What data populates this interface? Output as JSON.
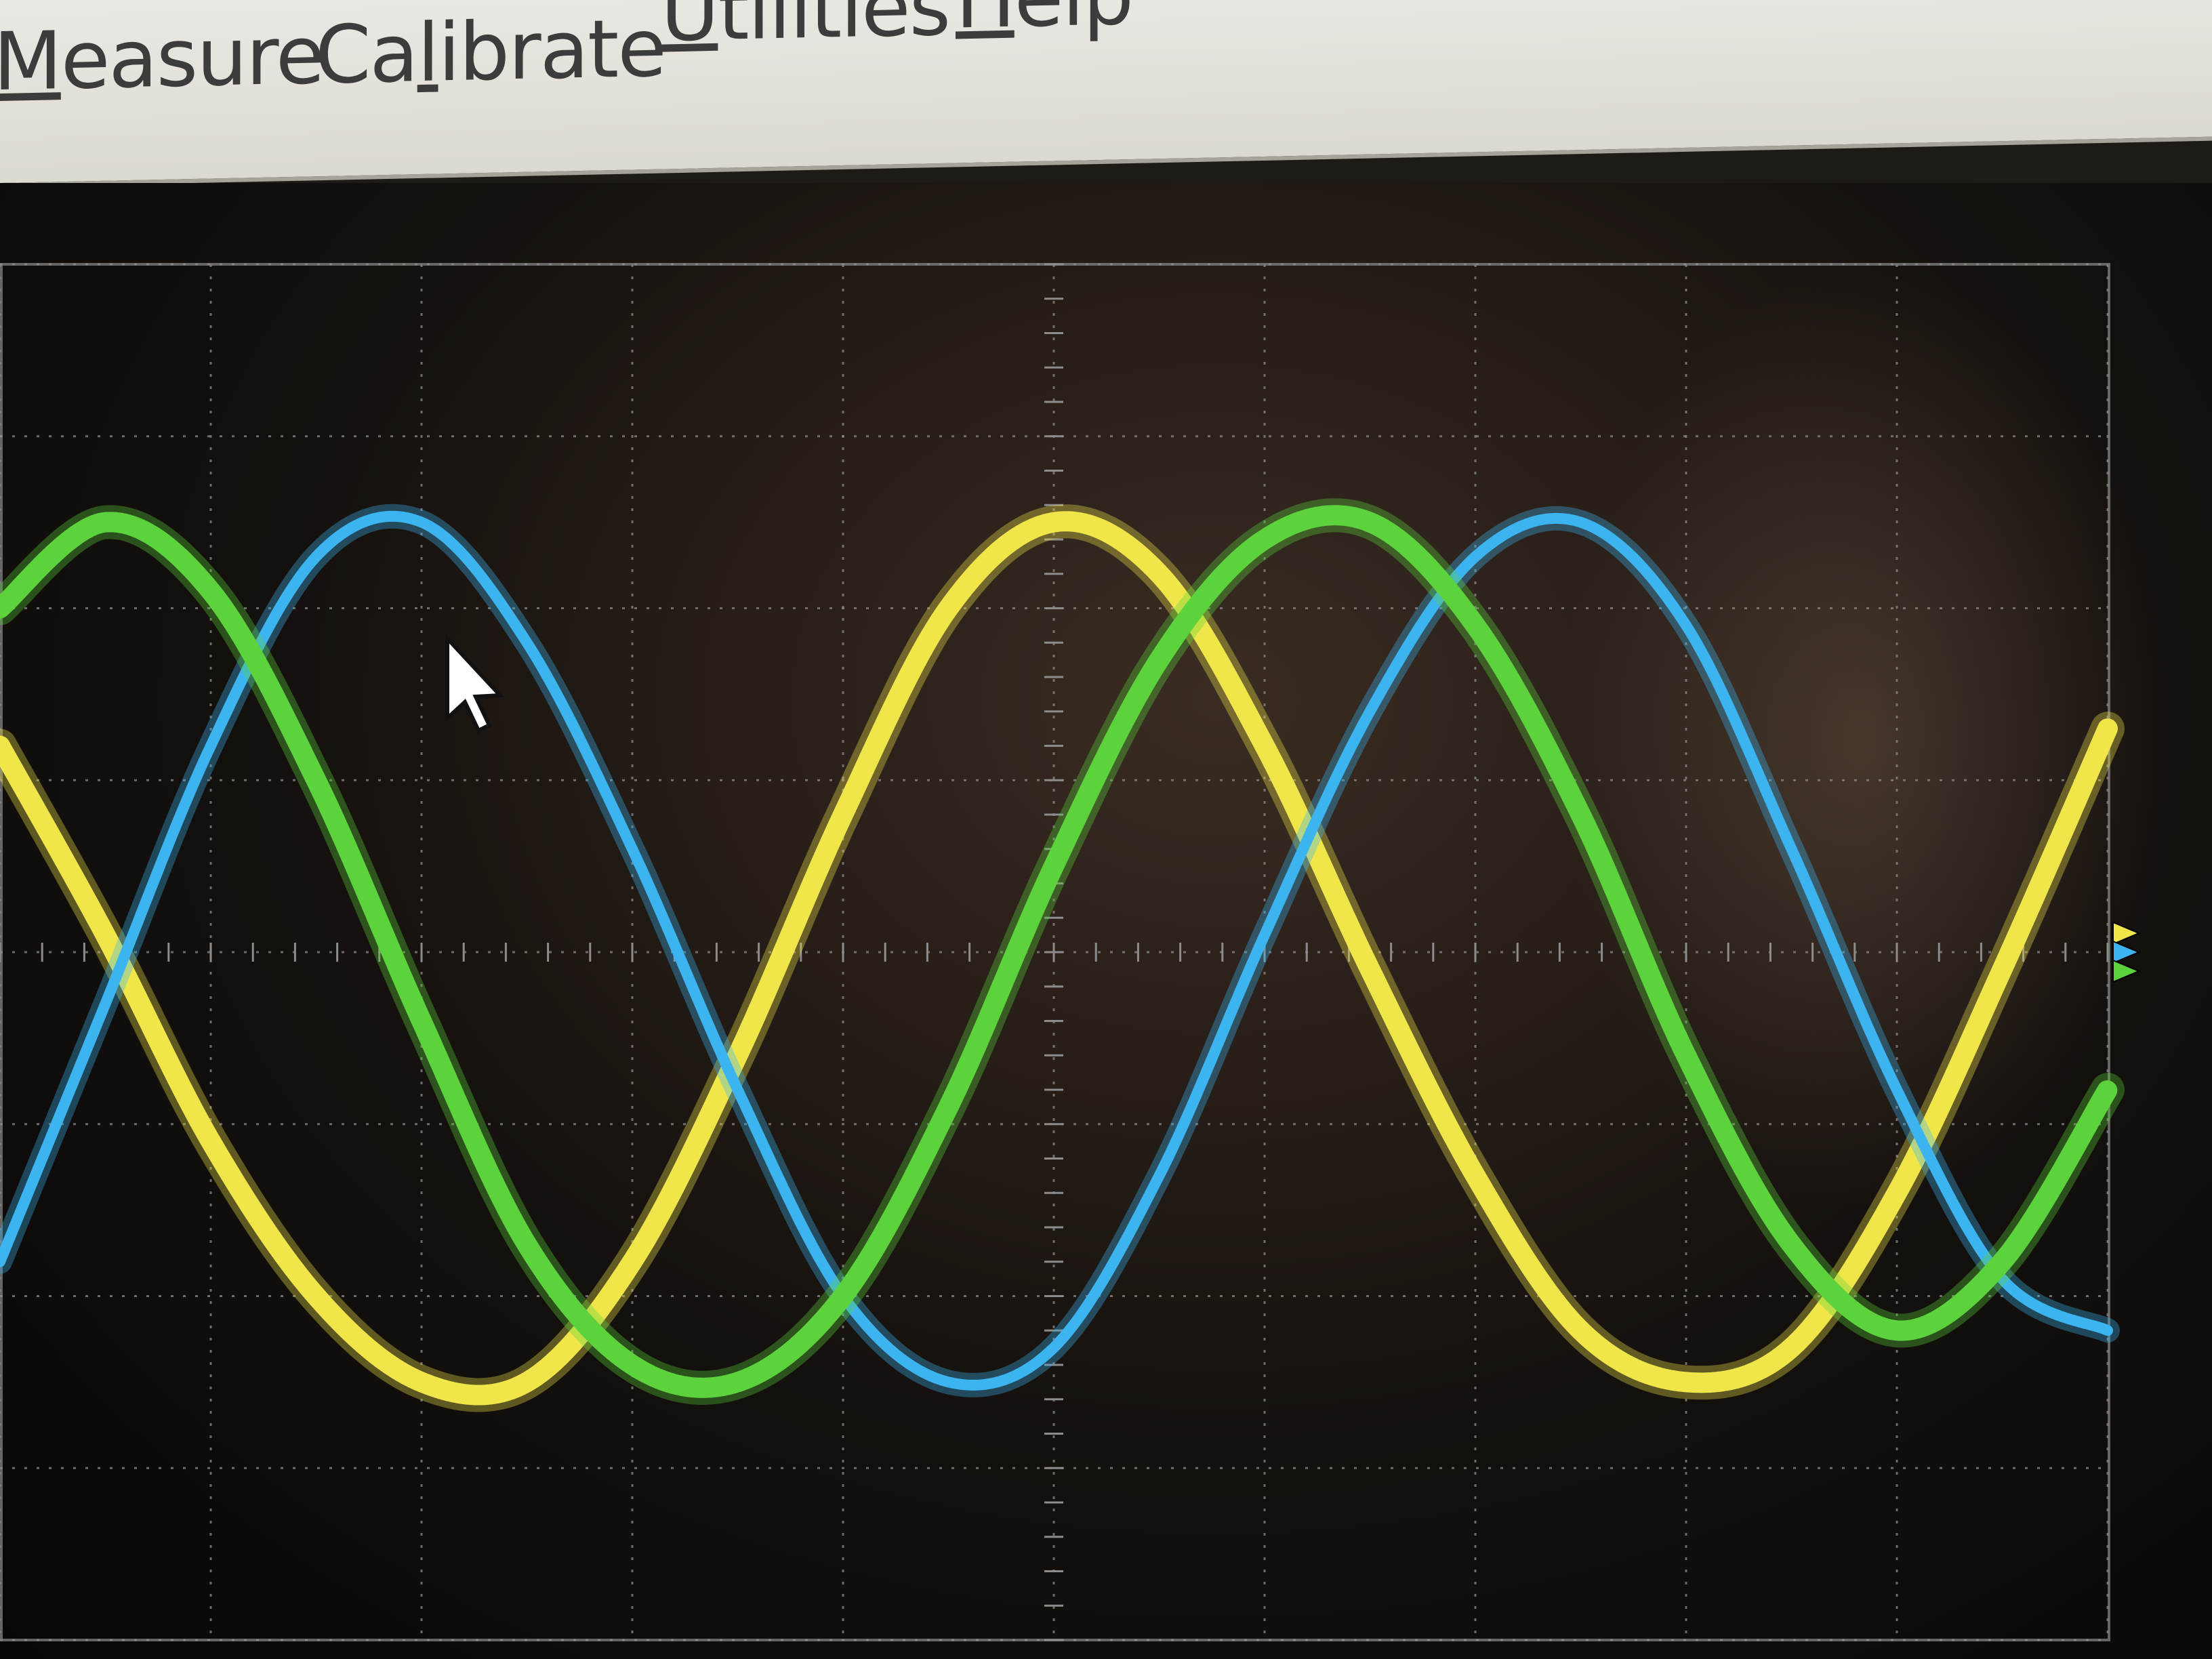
{
  "window": {
    "close_button": "close-icon"
  },
  "menu": {
    "items": [
      {
        "id": "measure",
        "before": "",
        "underline": "M",
        "after": "easure"
      },
      {
        "id": "calibrate",
        "before": "Ca",
        "underline": "l",
        "after": "ibrate"
      },
      {
        "id": "utilities",
        "before": "",
        "underline": "U",
        "after": "tilities"
      },
      {
        "id": "help",
        "before": "",
        "underline": "H",
        "after": "elp"
      }
    ]
  },
  "colors": {
    "background": "#000000",
    "grid": "#8c8c8c",
    "channel_1": "#f0e64a",
    "channel_2": "#3cb4f0",
    "channel_3": "#5cd23c"
  },
  "cursor": "mouse-pointer-icon",
  "ground_markers": [
    "channel-1-ground-marker",
    "channel-2-ground-marker",
    "channel-3-ground-marker"
  ],
  "chart_data": {
    "type": "line",
    "x": [
      0,
      0.5,
      1,
      1.5,
      2,
      2.5,
      3,
      3.5,
      4,
      4.5,
      5,
      5.5,
      6,
      6.5,
      7,
      7.5,
      8,
      8.5,
      9,
      9.5,
      10
    ],
    "series": [
      {
        "values": [
          1.2,
          0.1,
          -1.1,
          -2.0,
          -2.5,
          -2.5,
          -1.8,
          -0.6,
          0.8,
          2.0,
          2.5,
          2.2,
          1.2,
          -0.1,
          -1.3,
          -2.2,
          -2.5,
          -2.3,
          -1.4,
          -0.1,
          1.3
        ]
      },
      {
        "values": [
          -1.8,
          -0.3,
          1.2,
          2.3,
          2.5,
          1.8,
          0.6,
          -0.8,
          -2.0,
          -2.5,
          -2.3,
          -1.3,
          0.1,
          1.4,
          2.3,
          2.5,
          1.9,
          0.6,
          -0.8,
          -1.9,
          -2.2
        ]
      },
      {
        "values": [
          2.0,
          2.5,
          2.1,
          1.0,
          -0.4,
          -1.7,
          -2.4,
          -2.5,
          -2.0,
          -0.9,
          0.5,
          1.7,
          2.4,
          2.5,
          1.9,
          0.8,
          -0.6,
          -1.7,
          -2.2,
          -1.8,
          -0.8
        ]
      }
    ],
    "xlim": [
      0,
      10
    ],
    "ylim": [
      -4,
      4
    ],
    "grid": true,
    "legend": "none"
  }
}
